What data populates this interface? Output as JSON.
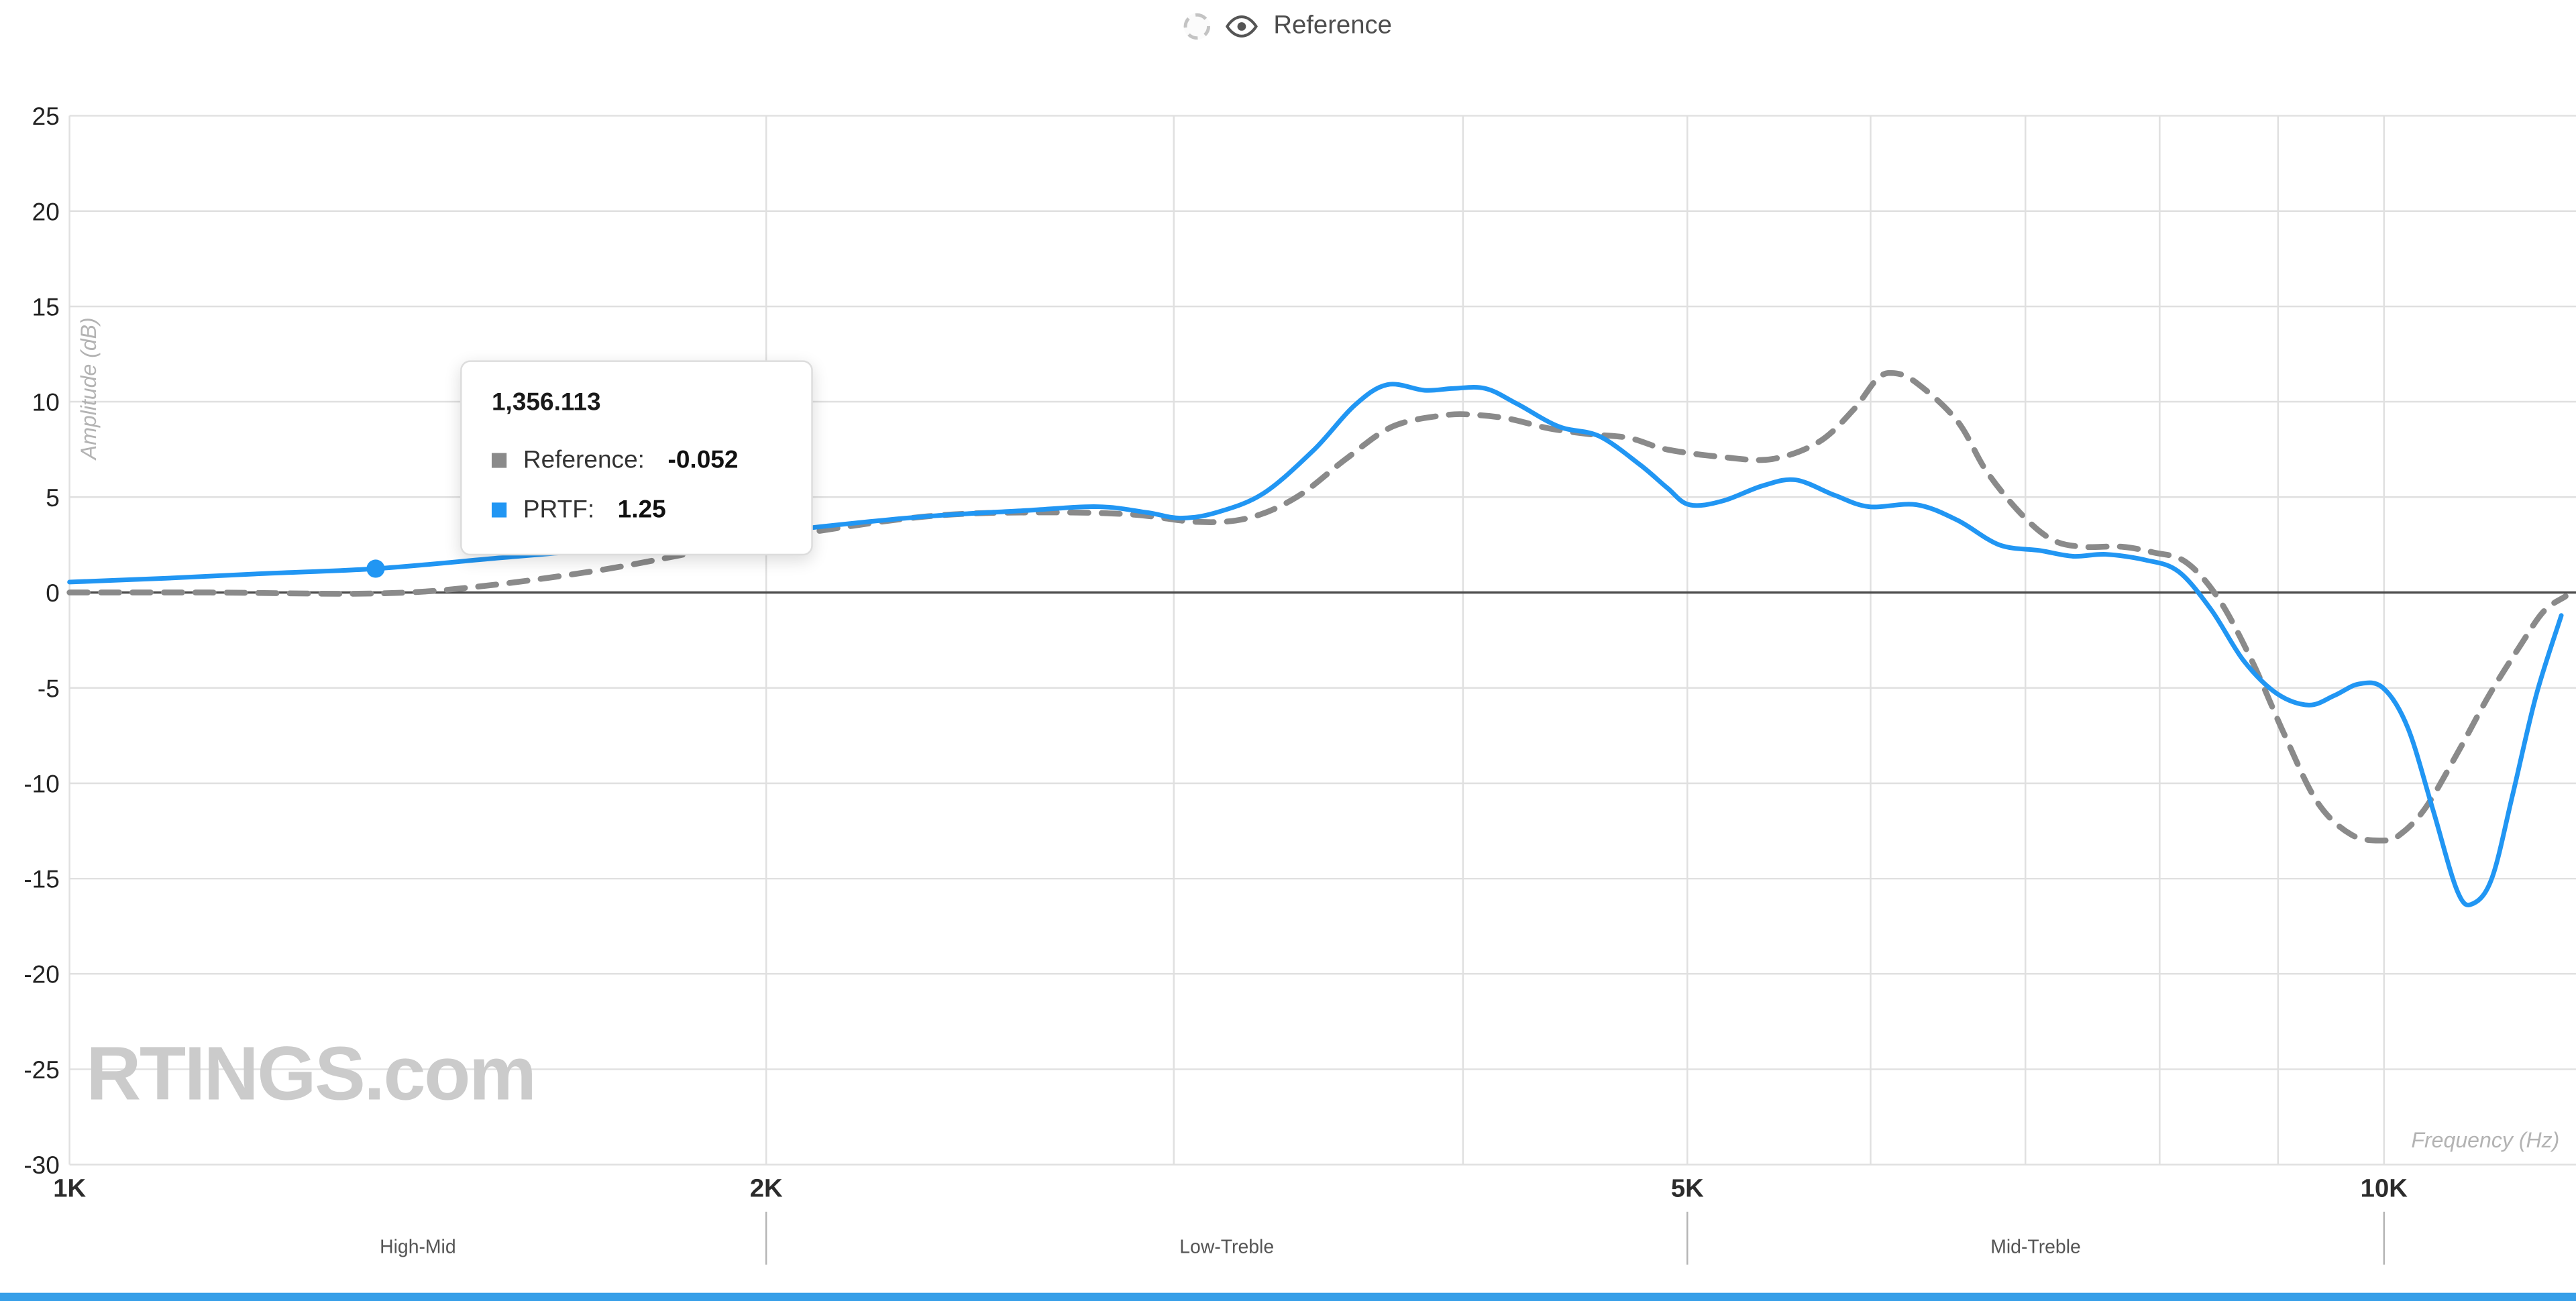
{
  "legend": {
    "label": "Reference",
    "swatch_icon": "dashed-circle",
    "eye_icon": "visibility-eye"
  },
  "tooltip": {
    "title": "1,356.113",
    "rows": [
      {
        "series": "Reference",
        "label": "Reference: ",
        "value": "-0.052",
        "color": "#8a8a8a"
      },
      {
        "series": "PRTF",
        "label": "PRTF: ",
        "value": "1.25",
        "color": "#2196f3"
      }
    ]
  },
  "watermark": "RTINGS.com",
  "colors": {
    "reference_series": "#8a8a8a",
    "prtf_series": "#2196f3",
    "grid": "#e0e0e0",
    "zero_line": "#4d4d4d",
    "accent_bar": "#379fe8"
  },
  "chart_data": {
    "type": "line",
    "title": "",
    "xlabel": "Frequency (Hz)",
    "ylabel": "Amplitude (dB)",
    "x_scale": "log",
    "xlim": [
      1000,
      12000
    ],
    "ylim": [
      -30,
      25
    ],
    "grid": true,
    "y_ticks": [
      25,
      20,
      15,
      10,
      5,
      0,
      -5,
      -10,
      -15,
      -20,
      -25,
      -30
    ],
    "x_ticks": [
      {
        "f": 1000,
        "label": "1K"
      },
      {
        "f": 2000,
        "label": "2K"
      },
      {
        "f": 5000,
        "label": "5K"
      },
      {
        "f": 10000,
        "label": "10K"
      }
    ],
    "x_gridlines": [
      1000,
      2000,
      3000,
      4000,
      5000,
      6000,
      7000,
      8000,
      9000,
      10000
    ],
    "bands": [
      {
        "label": "High-Mid",
        "from": 1000,
        "to": 2000
      },
      {
        "label": "Low-Treble",
        "from": 2000,
        "to": 5000
      },
      {
        "label": "Mid-Treble",
        "from": 5000,
        "to": 10000
      }
    ],
    "series": [
      {
        "name": "Reference",
        "color": "#8a8a8a",
        "style": "dashed",
        "stroke_width": 3.5,
        "points": [
          [
            1000,
            0.0
          ],
          [
            1150,
            0.0
          ],
          [
            1356,
            -0.05
          ],
          [
            1500,
            0.3
          ],
          [
            1700,
            1.2
          ],
          [
            1900,
            2.3
          ],
          [
            2100,
            3.2
          ],
          [
            2350,
            4.0
          ],
          [
            2600,
            4.2
          ],
          [
            2870,
            4.1
          ],
          [
            3070,
            3.7
          ],
          [
            3230,
            3.9
          ],
          [
            3390,
            5.0
          ],
          [
            3560,
            7.0
          ],
          [
            3730,
            8.7
          ],
          [
            3930,
            9.3
          ],
          [
            4060,
            9.3
          ],
          [
            4190,
            9.1
          ],
          [
            4360,
            8.6
          ],
          [
            4540,
            8.3
          ],
          [
            4720,
            8.1
          ],
          [
            4900,
            7.5
          ],
          [
            5180,
            7.1
          ],
          [
            5440,
            7.0
          ],
          [
            5700,
            7.9
          ],
          [
            5900,
            9.6
          ],
          [
            6040,
            11.2
          ],
          [
            6140,
            11.5
          ],
          [
            6280,
            11.0
          ],
          [
            6540,
            9.0
          ],
          [
            6730,
            6.4
          ],
          [
            6960,
            4.2
          ],
          [
            7180,
            2.8
          ],
          [
            7400,
            2.4
          ],
          [
            7700,
            2.4
          ],
          [
            7950,
            2.1
          ],
          [
            8210,
            1.6
          ],
          [
            8480,
            -0.3
          ],
          [
            8770,
            -3.6
          ],
          [
            9060,
            -7.5
          ],
          [
            9360,
            -11.0
          ],
          [
            9680,
            -12.7
          ],
          [
            9990,
            -13.0
          ],
          [
            10160,
            -12.7
          ],
          [
            10420,
            -11.3
          ],
          [
            10760,
            -8.4
          ],
          [
            11100,
            -5.4
          ],
          [
            11450,
            -2.8
          ],
          [
            11720,
            -1.0
          ],
          [
            11980,
            -0.2
          ]
        ]
      },
      {
        "name": "PRTF",
        "color": "#2196f3",
        "style": "solid",
        "stroke_width": 2.8,
        "points": [
          [
            1000,
            0.55
          ],
          [
            1100,
            0.75
          ],
          [
            1215,
            1.0
          ],
          [
            1356,
            1.25
          ],
          [
            1530,
            1.8
          ],
          [
            1750,
            2.4
          ],
          [
            1930,
            2.9
          ],
          [
            2130,
            3.5
          ],
          [
            2350,
            4.0
          ],
          [
            2590,
            4.3
          ],
          [
            2780,
            4.5
          ],
          [
            2920,
            4.2
          ],
          [
            3020,
            3.9
          ],
          [
            3130,
            4.2
          ],
          [
            3280,
            5.2
          ],
          [
            3450,
            7.5
          ],
          [
            3590,
            9.8
          ],
          [
            3710,
            10.9
          ],
          [
            3850,
            10.6
          ],
          [
            3960,
            10.7
          ],
          [
            4090,
            10.7
          ],
          [
            4220,
            9.9
          ],
          [
            4400,
            8.7
          ],
          [
            4580,
            8.2
          ],
          [
            4770,
            6.7
          ],
          [
            4900,
            5.5
          ],
          [
            5010,
            4.6
          ],
          [
            5180,
            4.8
          ],
          [
            5390,
            5.6
          ],
          [
            5570,
            5.9
          ],
          [
            5790,
            5.1
          ],
          [
            5990,
            4.5
          ],
          [
            6280,
            4.6
          ],
          [
            6540,
            3.8
          ],
          [
            6820,
            2.5
          ],
          [
            7100,
            2.2
          ],
          [
            7340,
            1.9
          ],
          [
            7580,
            2.0
          ],
          [
            7890,
            1.7
          ],
          [
            8150,
            1.1
          ],
          [
            8420,
            -0.9
          ],
          [
            8700,
            -3.6
          ],
          [
            8990,
            -5.3
          ],
          [
            9280,
            -5.9
          ],
          [
            9520,
            -5.4
          ],
          [
            9750,
            -4.8
          ],
          [
            9990,
            -5.0
          ],
          [
            10240,
            -7.1
          ],
          [
            10500,
            -11.4
          ],
          [
            10760,
            -15.7
          ],
          [
            10930,
            -16.3
          ],
          [
            11140,
            -14.9
          ],
          [
            11370,
            -10.5
          ],
          [
            11640,
            -5.3
          ],
          [
            11930,
            -1.2
          ]
        ]
      }
    ],
    "hover_marker": {
      "series": "PRTF",
      "frequency": 1356.113,
      "value": 1.25,
      "reference_value": -0.052
    },
    "legend_position": "top-center"
  }
}
